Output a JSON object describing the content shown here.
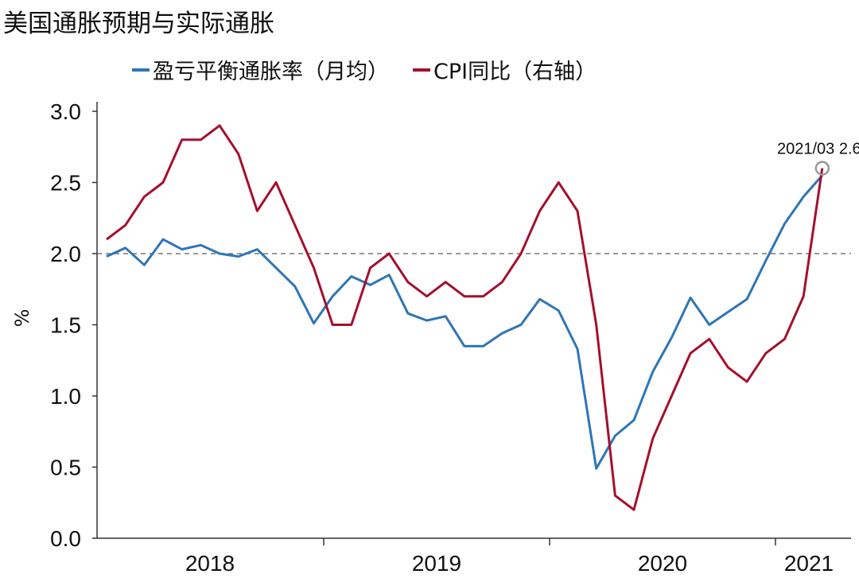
{
  "chart_data": {
    "type": "line",
    "title": "美国通胀预期与实际通胀",
    "ylabel": "%",
    "xlabel": "",
    "ylim": [
      0,
      3.0
    ],
    "yticks": [
      "0.0",
      "0.5",
      "1.0",
      "1.5",
      "2.0",
      "2.5",
      "3.0"
    ],
    "ytick_values": [
      0,
      0.5,
      1.0,
      1.5,
      2.0,
      2.5,
      3.0
    ],
    "x_start": "2018-01",
    "x_end": "2021-03",
    "year_labels": [
      "2018",
      "2019",
      "2020",
      "2021"
    ],
    "reference_line": 2.0,
    "grid": false,
    "legend_position": "top",
    "series": [
      {
        "name": "盈亏平衡通胀率（月均）",
        "color": "#2E75B6",
        "values": [
          1.98,
          2.04,
          1.92,
          2.1,
          2.03,
          2.06,
          2.0,
          1.98,
          2.03,
          1.9,
          1.77,
          1.51,
          1.7,
          1.84,
          1.78,
          1.85,
          1.58,
          1.53,
          1.56,
          1.35,
          1.35,
          1.44,
          1.5,
          1.68,
          1.6,
          1.33,
          0.49,
          0.72,
          0.83,
          1.17,
          1.41,
          1.69,
          1.5,
          1.59,
          1.68,
          1.95,
          2.21,
          2.4,
          2.55
        ]
      },
      {
        "name": "CPI同比（右轴）",
        "color": "#A50F2D",
        "values": [
          2.1,
          2.2,
          2.4,
          2.5,
          2.8,
          2.8,
          2.9,
          2.7,
          2.3,
          2.5,
          2.2,
          1.9,
          1.5,
          1.5,
          1.9,
          2.0,
          1.8,
          1.7,
          1.8,
          1.7,
          1.7,
          1.8,
          2.0,
          2.3,
          2.5,
          2.3,
          1.5,
          0.3,
          0.2,
          0.7,
          1.0,
          1.3,
          1.4,
          1.2,
          1.1,
          1.3,
          1.4,
          1.7,
          2.6
        ]
      }
    ],
    "annotation": {
      "text": "2021/03 2.6",
      "value": 2.6,
      "x": "2021-03"
    }
  }
}
